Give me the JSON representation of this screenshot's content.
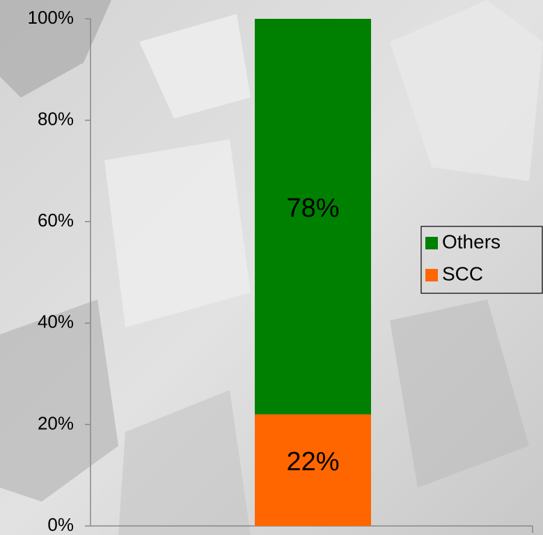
{
  "chart_data": {
    "type": "stacked_bar",
    "categories": [
      null
    ],
    "series": [
      {
        "name": "SCC",
        "color": "#ff6600",
        "values": [
          22
        ],
        "value_labels": [
          "22%"
        ]
      },
      {
        "name": "Others",
        "color": "#008000",
        "values": [
          78
        ],
        "value_labels": [
          "78%"
        ]
      }
    ],
    "ylim": [
      0,
      100
    ],
    "yticks": [
      {
        "value": 0,
        "label": "0%"
      },
      {
        "value": 20,
        "label": "20%"
      },
      {
        "value": 40,
        "label": "40%"
      },
      {
        "value": 60,
        "label": "60%"
      },
      {
        "value": 80,
        "label": "80%"
      },
      {
        "value": 100,
        "label": "100%"
      }
    ],
    "grid": false,
    "legend": "right"
  }
}
